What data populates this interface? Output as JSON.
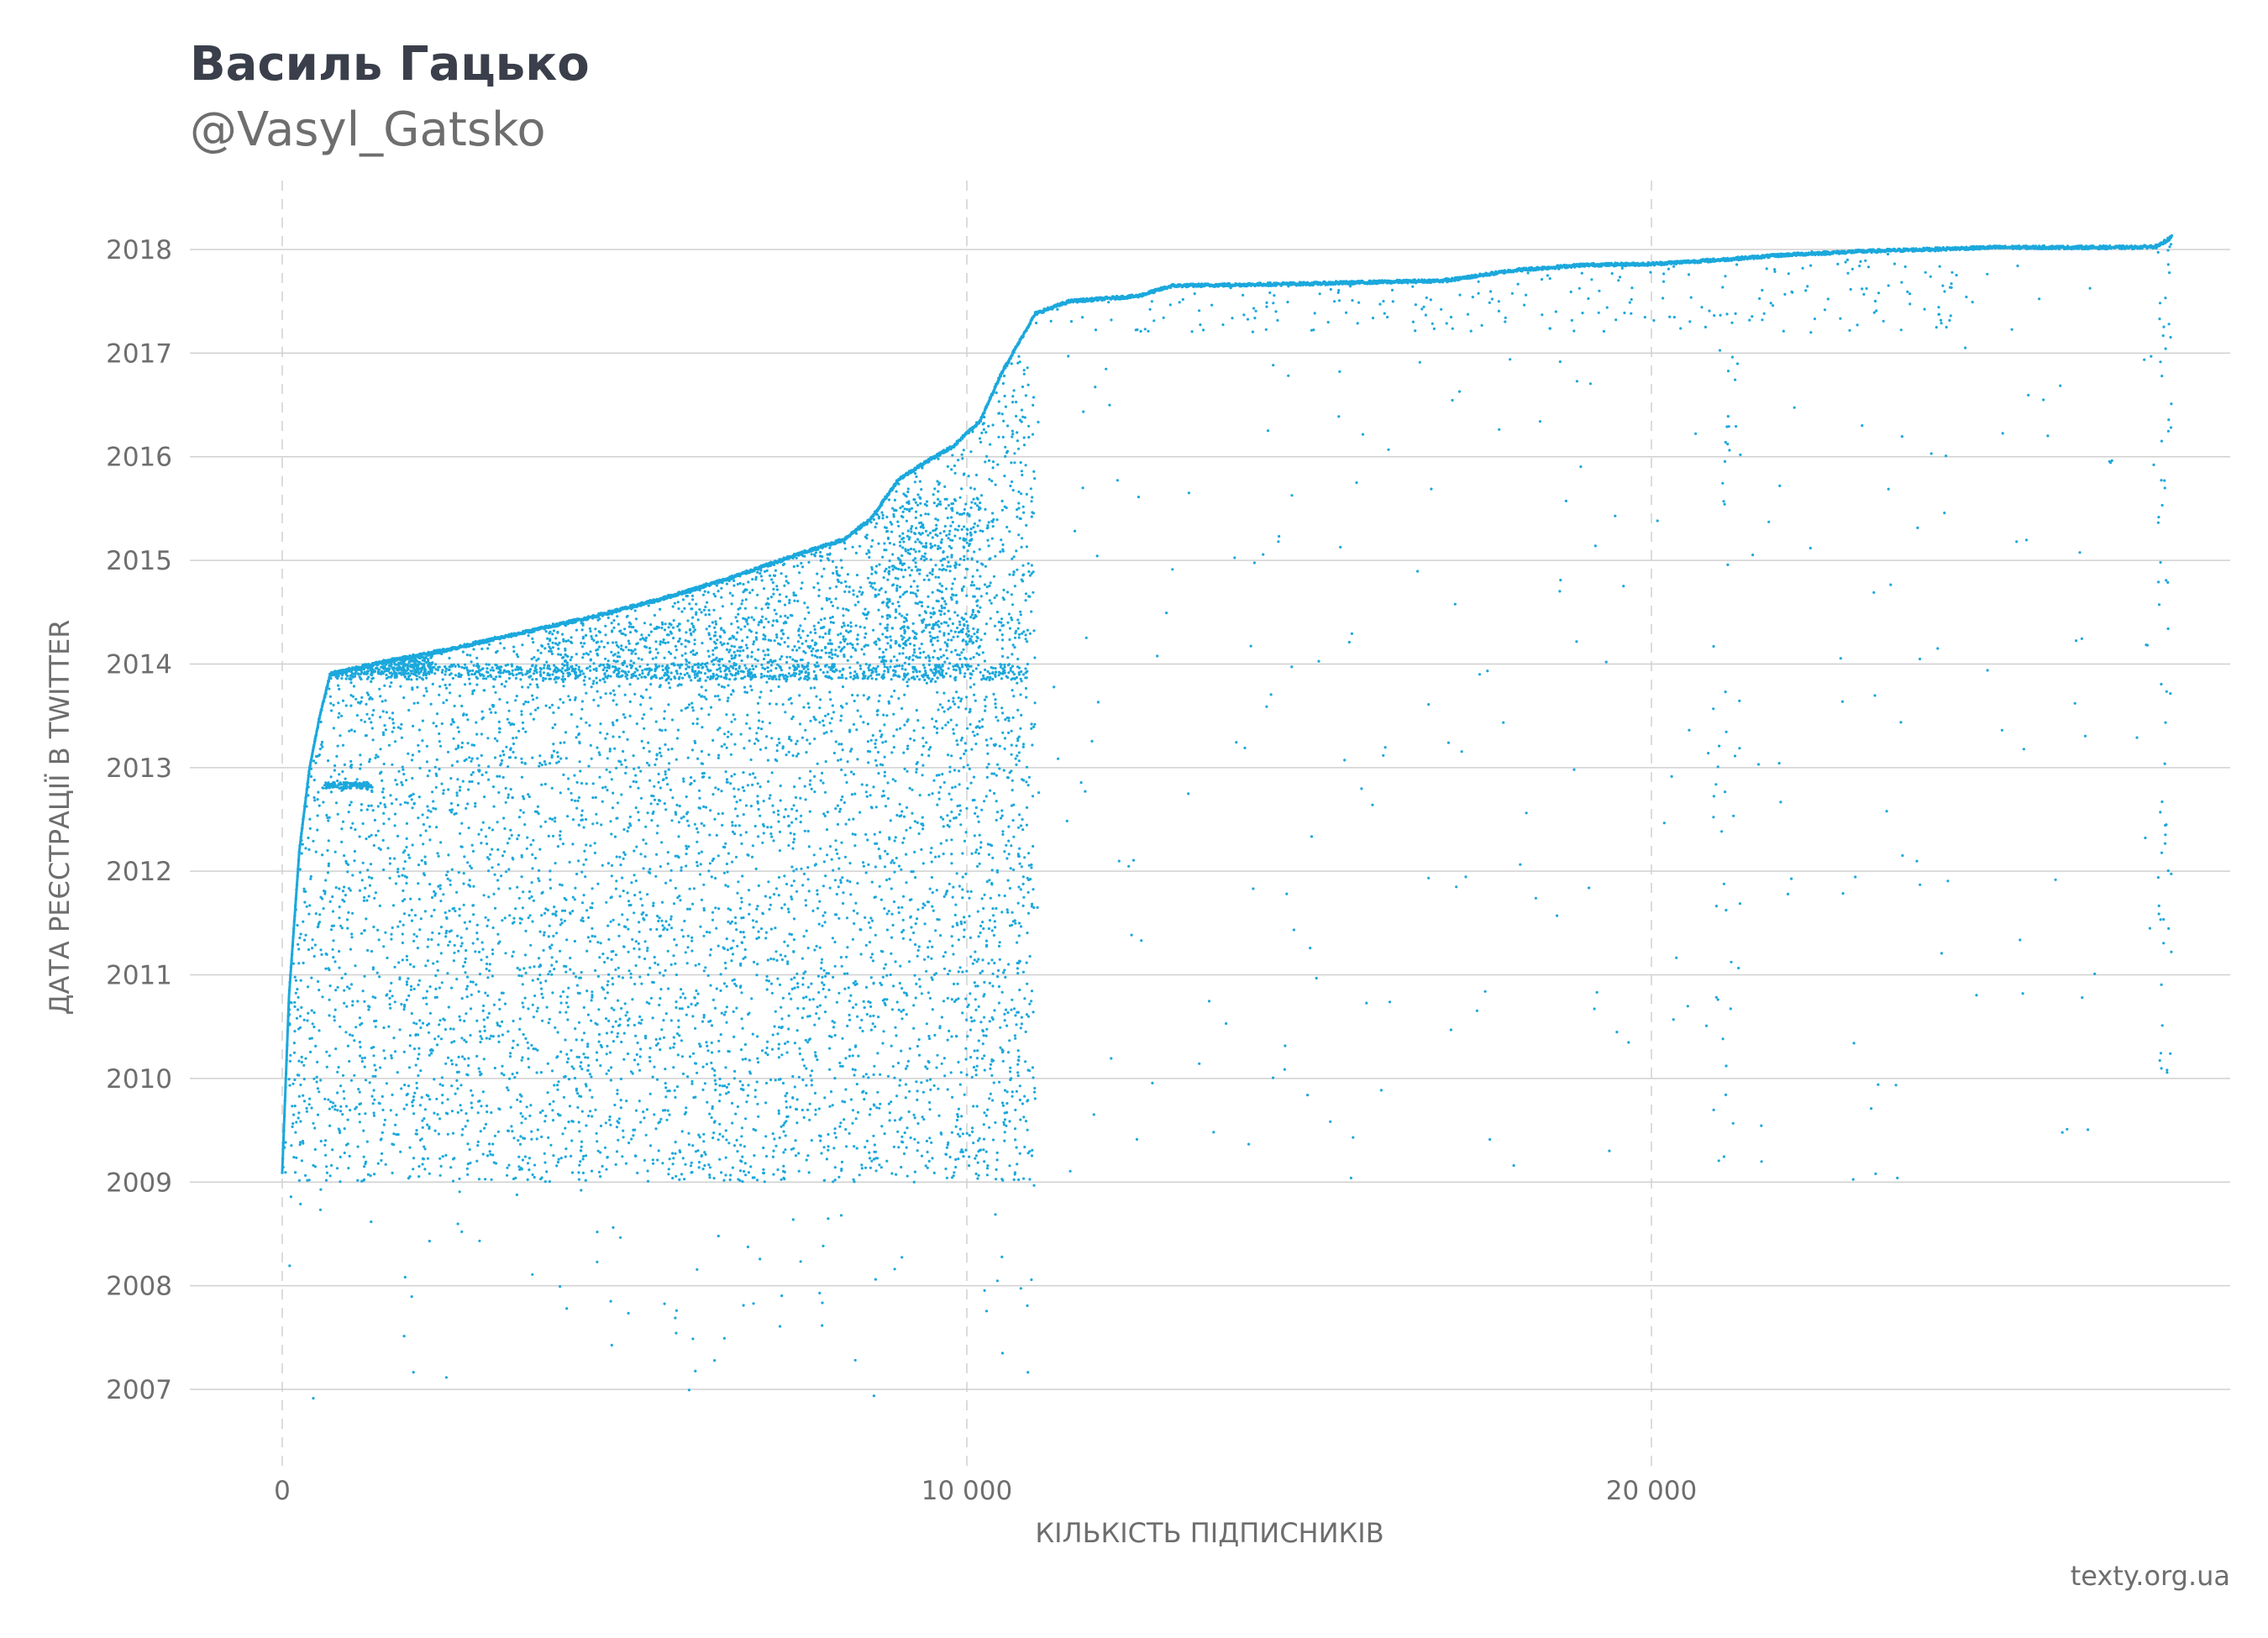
{
  "header": {
    "title": "Василь Гацько",
    "subtitle": "@Vasyl_Gatsko"
  },
  "footer": {
    "source": "texty.org.ua"
  },
  "chart_data": {
    "type": "scatter",
    "xlabel": "КІЛЬКІСТЬ ПІДПИСНИКІВ",
    "ylabel": "ДАТА РЕЄСТРАЦІЇ В TWITTER",
    "xlim": [
      -1350,
      28900
    ],
    "ylim": [
      2006.3,
      2018.8
    ],
    "x_ticks": [
      {
        "value": 0,
        "label": "0"
      },
      {
        "value": 10000,
        "label": "10 000"
      },
      {
        "value": 20000,
        "label": "20 000"
      }
    ],
    "y_ticks": [
      {
        "value": 2007,
        "label": "2007"
      },
      {
        "value": 2008,
        "label": "2008"
      },
      {
        "value": 2009,
        "label": "2009"
      },
      {
        "value": 2010,
        "label": "2010"
      },
      {
        "value": 2011,
        "label": "2011"
      },
      {
        "value": 2012,
        "label": "2012"
      },
      {
        "value": 2013,
        "label": "2013"
      },
      {
        "value": 2014,
        "label": "2014"
      },
      {
        "value": 2015,
        "label": "2015"
      },
      {
        "value": 2016,
        "label": "2016"
      },
      {
        "value": 2017,
        "label": "2017"
      },
      {
        "value": 2018,
        "label": "2018"
      }
    ],
    "grid": {
      "horizontal": true,
      "vertical_dashed": true
    },
    "point_color": "#1ba8dc",
    "grid_color": "#d0d0d0",
    "frontier": [
      {
        "x": 0,
        "y": 2009.1
      },
      {
        "x": 100,
        "y": 2010.8
      },
      {
        "x": 250,
        "y": 2012.2
      },
      {
        "x": 400,
        "y": 2013.0
      },
      {
        "x": 550,
        "y": 2013.5
      },
      {
        "x": 700,
        "y": 2013.9
      },
      {
        "x": 1500,
        "y": 2014.02
      },
      {
        "x": 2500,
        "y": 2014.15
      },
      {
        "x": 3500,
        "y": 2014.3
      },
      {
        "x": 4500,
        "y": 2014.45
      },
      {
        "x": 5500,
        "y": 2014.62
      },
      {
        "x": 6500,
        "y": 2014.82
      },
      {
        "x": 7500,
        "y": 2015.05
      },
      {
        "x": 8200,
        "y": 2015.2
      },
      {
        "x": 8600,
        "y": 2015.4
      },
      {
        "x": 9000,
        "y": 2015.78
      },
      {
        "x": 9400,
        "y": 2015.95
      },
      {
        "x": 9800,
        "y": 2016.1
      },
      {
        "x": 10200,
        "y": 2016.35
      },
      {
        "x": 10500,
        "y": 2016.8
      },
      {
        "x": 11000,
        "y": 2017.38
      },
      {
        "x": 11500,
        "y": 2017.5
      },
      {
        "x": 12500,
        "y": 2017.55
      },
      {
        "x": 13000,
        "y": 2017.65
      },
      {
        "x": 15000,
        "y": 2017.67
      },
      {
        "x": 17000,
        "y": 2017.7
      },
      {
        "x": 18000,
        "y": 2017.8
      },
      {
        "x": 19000,
        "y": 2017.85
      },
      {
        "x": 20000,
        "y": 2017.86
      },
      {
        "x": 21000,
        "y": 2017.9
      },
      {
        "x": 22000,
        "y": 2017.95
      },
      {
        "x": 23000,
        "y": 2017.98
      },
      {
        "x": 24000,
        "y": 2018.0
      },
      {
        "x": 25000,
        "y": 2018.02
      },
      {
        "x": 26000,
        "y": 2018.02
      },
      {
        "x": 27000,
        "y": 2018.02
      },
      {
        "x": 27400,
        "y": 2018.03
      },
      {
        "x": 27600,
        "y": 2018.12
      }
    ],
    "point_clouds": [
      {
        "x_range": [
          0,
          11000
        ],
        "y_range": [
          2009.0,
          2014.4
        ],
        "count": 5200
      },
      {
        "x_range": [
          700,
          10900
        ],
        "y_range": [
          2013.85,
          2014.0
        ],
        "count": 900
      },
      {
        "x_range": [
          700,
          2200
        ],
        "y_range": [
          2013.9,
          2014.1
        ],
        "count": 400
      },
      {
        "x_range": [
          600,
          1300
        ],
        "y_range": [
          2012.8,
          2012.86
        ],
        "count": 120
      },
      {
        "x_range": [
          3800,
          10200
        ],
        "y_range": [
          2014.0,
          2015.6
        ],
        "count": 1600
      },
      {
        "x_range": [
          8800,
          11000
        ],
        "y_range": [
          2014.2,
          2017.4
        ],
        "count": 700
      },
      {
        "x_range": [
          0,
          11000
        ],
        "y_range": [
          2006.85,
          2009.0
        ],
        "count": 70
      },
      {
        "x_range": [
          11000,
          27600
        ],
        "y_range": [
          2009.0,
          2017.9
        ],
        "count": 260
      },
      {
        "x_range": [
          11000,
          24500
        ],
        "y_range": [
          2017.2,
          2018.0
        ],
        "count": 320
      },
      {
        "x_range": [
          20900,
          21300
        ],
        "y_range": [
          2009.1,
          2018.0
        ],
        "count": 40
      },
      {
        "x_range": [
          27400,
          27600
        ],
        "y_range": [
          2009.9,
          2018.1
        ],
        "count": 60
      }
    ]
  }
}
